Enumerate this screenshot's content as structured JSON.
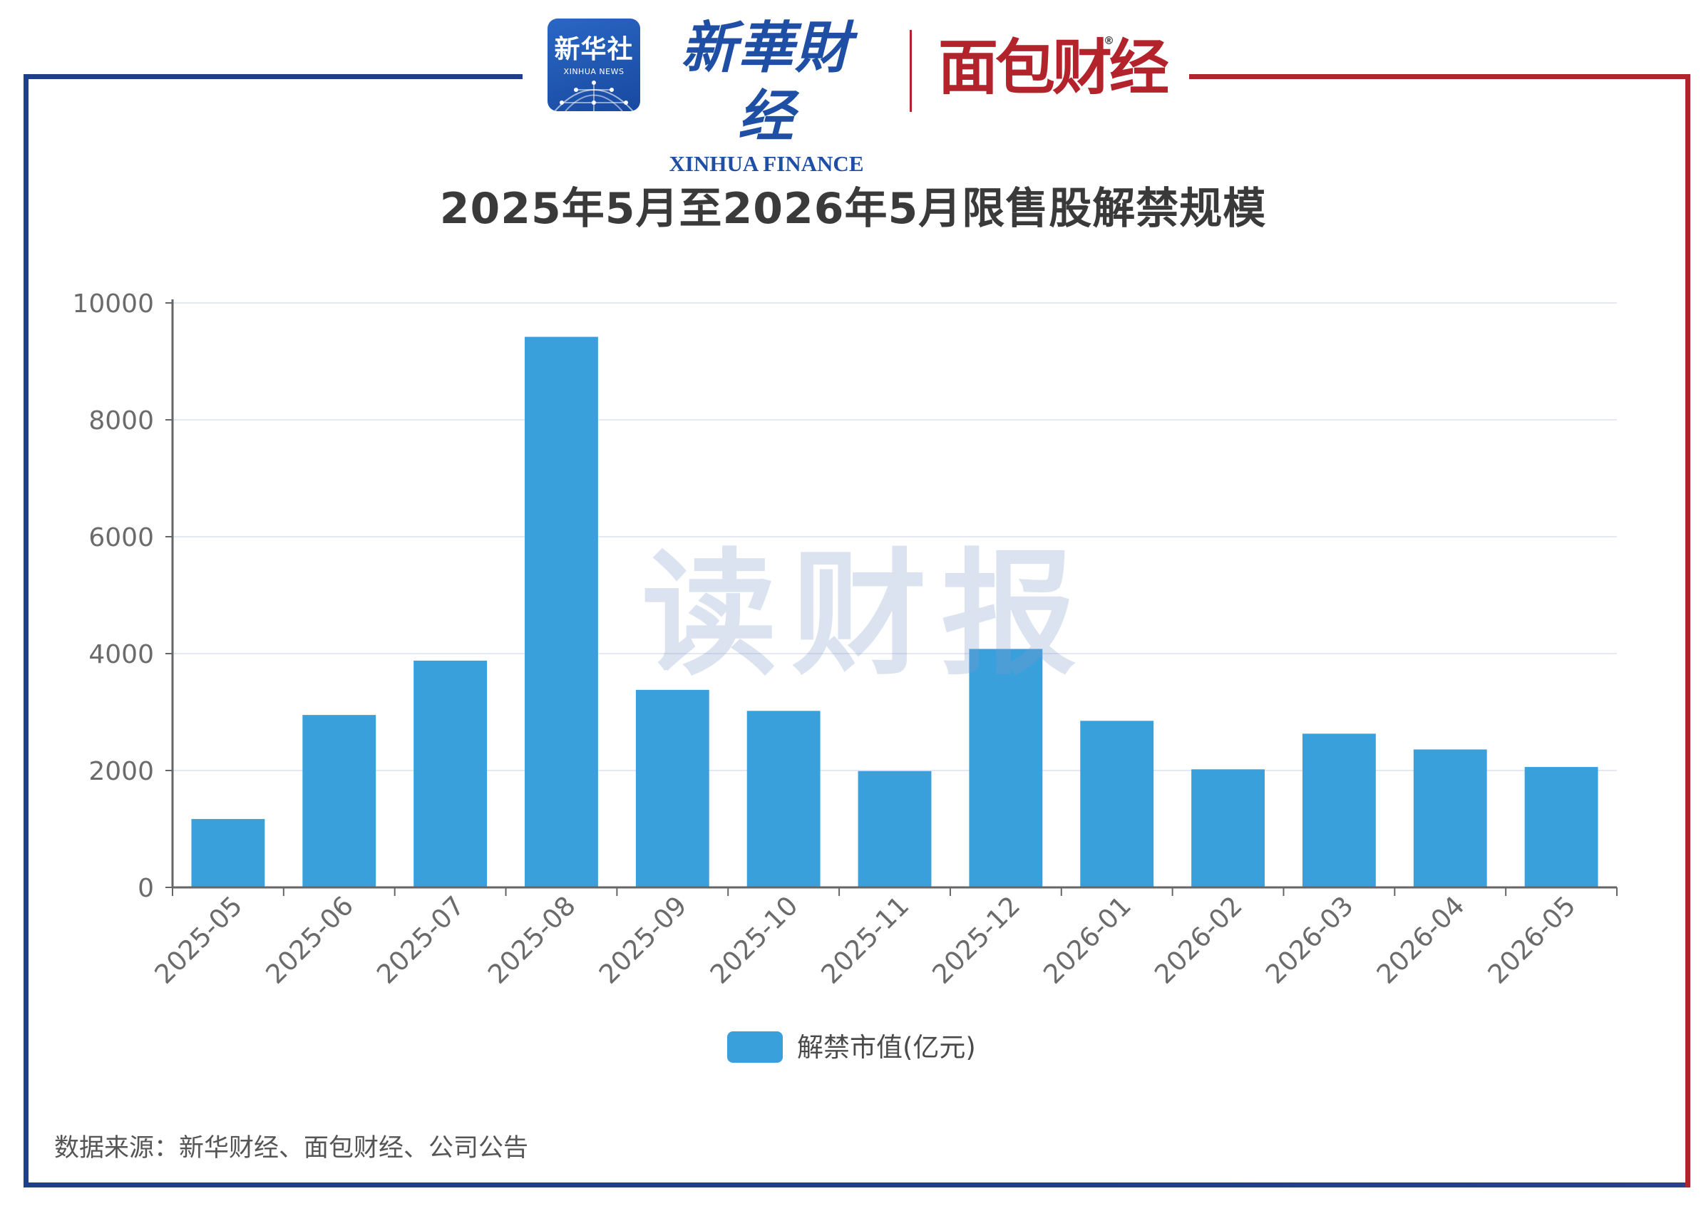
{
  "logos": {
    "xinhua_news_cn": "新华社",
    "xinhua_news_en": "XINHUA NEWS",
    "xinhua_finance_cn": "新華財经",
    "xinhua_finance_en": "XINHUA FINANCE",
    "mianbao_cn": "面包财经",
    "registered_mark": "®"
  },
  "watermark": "读财报",
  "source": "数据来源：新华财经、面包财经、公司公告",
  "colors": {
    "bar": "#3aa0dc",
    "frame_left": "#1f3f8a",
    "frame_right": "#b3232c",
    "grid": "#e3e8f3",
    "axis": "#666666",
    "tick_label": "#6b6b6b"
  },
  "chart_data": {
    "type": "bar",
    "title": "2025年5月至2026年5月限售股解禁规模",
    "xlabel": "",
    "ylabel": "",
    "categories": [
      "2025-05",
      "2025-06",
      "2025-07",
      "2025-08",
      "2025-09",
      "2025-10",
      "2025-11",
      "2025-12",
      "2026-01",
      "2026-02",
      "2026-03",
      "2026-04",
      "2026-05"
    ],
    "series": [
      {
        "name": "解禁市值(亿元)",
        "values": [
          1170,
          2950,
          3880,
          9420,
          3380,
          3020,
          1990,
          4080,
          2850,
          2020,
          2630,
          2360,
          2060
        ]
      }
    ],
    "ylim": [
      0,
      10000
    ],
    "yticks": [
      0,
      2000,
      4000,
      6000,
      8000,
      10000
    ],
    "grid": true,
    "legend_position": "bottom-center"
  }
}
